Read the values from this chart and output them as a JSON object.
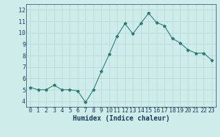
{
  "x": [
    0,
    1,
    2,
    3,
    4,
    5,
    6,
    7,
    8,
    9,
    10,
    11,
    12,
    13,
    14,
    15,
    16,
    17,
    18,
    19,
    20,
    21,
    22,
    23
  ],
  "y": [
    5.2,
    5.0,
    5.0,
    5.4,
    5.0,
    5.0,
    4.9,
    3.9,
    5.0,
    6.6,
    8.1,
    9.7,
    10.8,
    9.9,
    10.8,
    11.7,
    10.9,
    10.6,
    9.5,
    9.1,
    8.5,
    8.2,
    8.2,
    7.6
  ],
  "line_color": "#2a7a6e",
  "marker": "*",
  "marker_size": 3,
  "bg_color": "#ceecea",
  "grid_color": "#b8d8d5",
  "xlabel": "Humidex (Indice chaleur)",
  "xlabel_color": "#1a3a5c",
  "xlabel_fontsize": 7,
  "tick_color": "#1a3a5c",
  "tick_fontsize": 6,
  "ylim": [
    3.5,
    12.5
  ],
  "yticks": [
    4,
    5,
    6,
    7,
    8,
    9,
    10,
    11,
    12
  ],
  "xlim": [
    -0.5,
    23.5
  ],
  "xticks": [
    0,
    1,
    2,
    3,
    4,
    5,
    6,
    7,
    8,
    9,
    10,
    11,
    12,
    13,
    14,
    15,
    16,
    17,
    18,
    19,
    20,
    21,
    22,
    23
  ]
}
